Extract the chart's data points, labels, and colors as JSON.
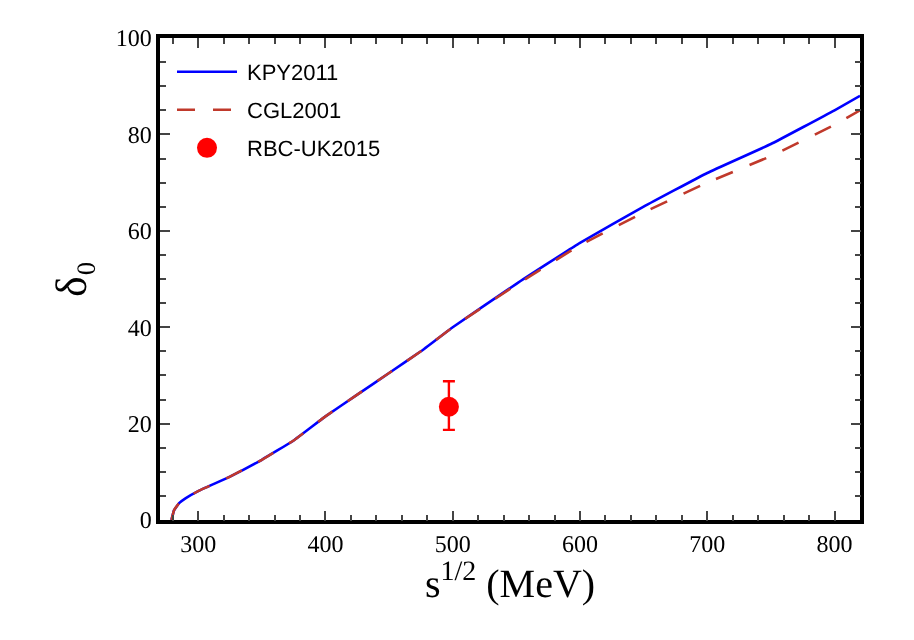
{
  "chart_data": {
    "type": "line",
    "xlabel": "s$^{1/2}$ (MeV)",
    "ylabel": "δ₀",
    "xlim": [
      270,
      820
    ],
    "xticks": [
      300,
      400,
      500,
      600,
      700,
      800
    ],
    "ylim": [
      0,
      100
    ],
    "yticks": [
      0,
      20,
      40,
      60,
      80,
      100
    ],
    "legend": "top left",
    "series": [
      {
        "name": "KPY2011",
        "color": "#0000ff",
        "line_style": "solid",
        "marker": "none",
        "x": [
          279,
          281,
          285,
          290,
          300,
          325,
          350,
          375,
          400,
          425,
          450,
          475,
          500,
          550,
          600,
          650,
          700,
          750,
          800,
          820
        ],
        "values": [
          0,
          2,
          3.5,
          4.5,
          6,
          9,
          12.5,
          16.5,
          21.5,
          26,
          30.5,
          35,
          40,
          49,
          57.5,
          65,
          72,
          78,
          85,
          88
        ]
      },
      {
        "name": "CGL2001",
        "color": "#c0392b",
        "line_style": "dashed",
        "marker": "none",
        "x": [
          279,
          281,
          285,
          290,
          300,
          325,
          350,
          375,
          400,
          425,
          450,
          475,
          500,
          550,
          600,
          650,
          700,
          750,
          800,
          820
        ],
        "values": [
          0,
          2,
          3.5,
          4.5,
          6,
          9,
          12.5,
          16.5,
          21.5,
          26,
          30.5,
          35,
          40,
          48.8,
          57,
          63.8,
          70,
          75.5,
          82,
          85
        ]
      },
      {
        "name": "RBC-UK2015",
        "type": "scatter",
        "color": "#ff0000",
        "marker": "circle",
        "x": [
          497
        ],
        "values": [
          23.5
        ],
        "errors": [
          [
            18.7,
            28.8
          ]
        ]
      }
    ]
  }
}
